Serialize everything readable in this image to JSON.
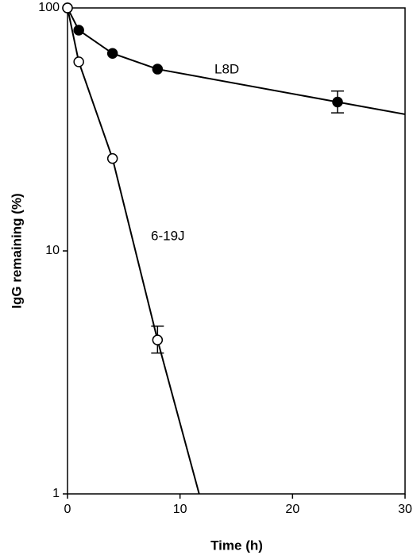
{
  "chart_data": {
    "type": "line",
    "x_label": "Time (h)",
    "y_label": "IgG remaining (%)",
    "xlim": [
      0,
      30
    ],
    "xticks": [
      0,
      10,
      20,
      30
    ],
    "ylim": [
      1,
      100
    ],
    "yticks": [
      1,
      10,
      100
    ],
    "log_y": true,
    "series": [
      {
        "name": "L8D",
        "color": "#000000",
        "marker": "filled",
        "x": [
          0,
          1,
          4,
          8,
          24
        ],
        "values": [
          100,
          81,
          65,
          56,
          41
        ],
        "err_low": [
          null,
          null,
          null,
          null,
          37
        ],
        "err_high": [
          null,
          null,
          null,
          null,
          45.5
        ],
        "line_x": [
          0,
          1,
          4,
          8,
          24,
          30
        ],
        "line_values": [
          100,
          81,
          65,
          56,
          41,
          36.5
        ]
      },
      {
        "name": "6-19J",
        "color": "#000000",
        "marker": "open",
        "x": [
          0,
          1,
          4,
          8
        ],
        "values": [
          100,
          60,
          24,
          4.3
        ],
        "err_low": [
          null,
          null,
          null,
          3.8
        ],
        "err_high": [
          null,
          null,
          null,
          4.9
        ],
        "line_x": [
          0,
          1,
          4,
          8,
          11.7
        ],
        "line_values": [
          100,
          60,
          24,
          4.3,
          1
        ]
      }
    ]
  }
}
